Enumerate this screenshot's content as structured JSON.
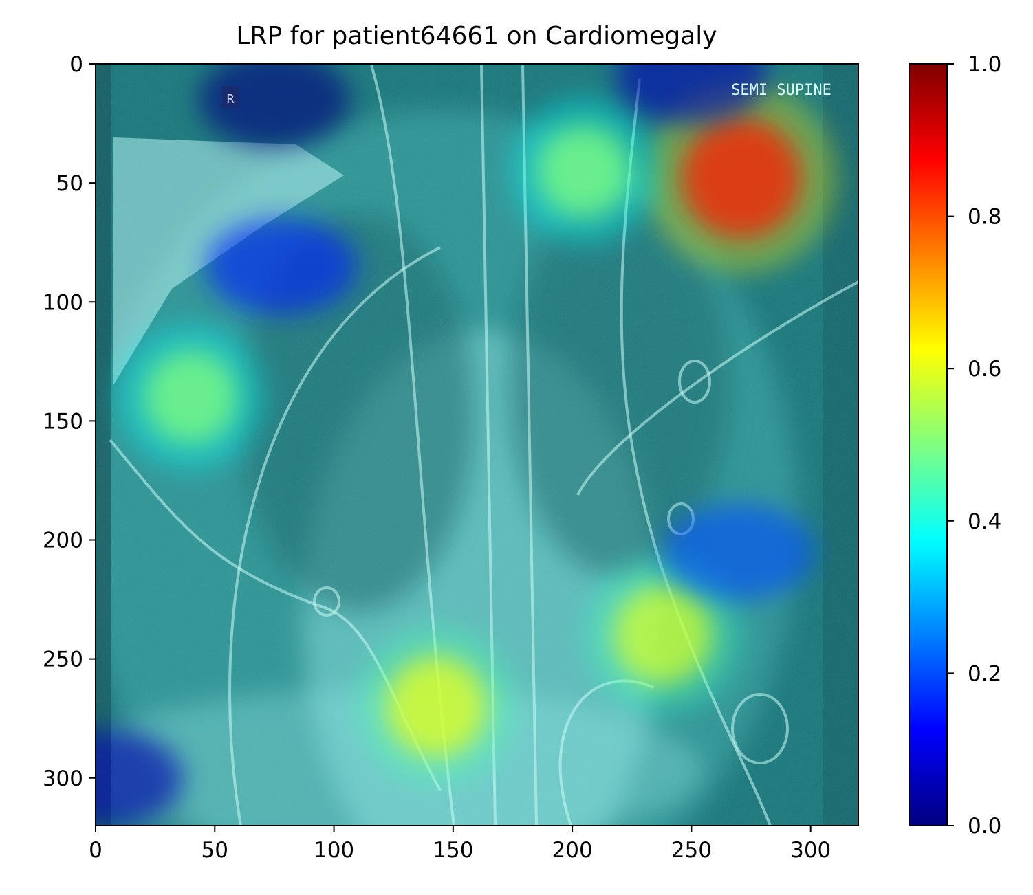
{
  "chart_data": {
    "type": "heatmap",
    "title": "LRP for patient64661 on Cardiomegaly",
    "xlabel": "",
    "ylabel": "",
    "xlim": [
      0,
      320
    ],
    "ylim": [
      320,
      0
    ],
    "x_ticks": [
      0,
      50,
      100,
      150,
      200,
      250,
      300
    ],
    "y_ticks": [
      0,
      50,
      100,
      150,
      200,
      250,
      300
    ],
    "x_tick_labels": [
      "0",
      "50",
      "100",
      "150",
      "200",
      "250",
      "300"
    ],
    "y_tick_labels": [
      "0",
      "50",
      "100",
      "150",
      "200",
      "250",
      "300"
    ],
    "colormap": "jet",
    "colorbar": {
      "range": [
        0.0,
        1.0
      ],
      "ticks": [
        0.0,
        0.2,
        0.4,
        0.6,
        0.8,
        1.0
      ],
      "tick_labels": [
        "0.0",
        "0.2",
        "0.4",
        "0.6",
        "0.8",
        "1.0"
      ],
      "colors": [
        "#000080",
        "#0000ff",
        "#0080ff",
        "#00ffff",
        "#80ff80",
        "#ffff00",
        "#ff8000",
        "#ff0000",
        "#800000"
      ]
    },
    "image_overlay_text": [
      "R",
      "SEMI SUPINE"
    ],
    "relevance_hotspots": [
      {
        "x": 271,
        "y": 48,
        "value": 0.85
      },
      {
        "x": 143,
        "y": 270,
        "value": 0.6
      },
      {
        "x": 238,
        "y": 240,
        "value": 0.58
      },
      {
        "x": 205,
        "y": 45,
        "value": 0.5
      },
      {
        "x": 40,
        "y": 140,
        "value": 0.5
      }
    ],
    "relevance_coldspots": [
      {
        "x": 75,
        "y": 15,
        "value": 0.0
      },
      {
        "x": 250,
        "y": 5,
        "value": 0.05
      },
      {
        "x": 78,
        "y": 85,
        "value": 0.15
      },
      {
        "x": 270,
        "y": 205,
        "value": 0.2
      },
      {
        "x": 5,
        "y": 300,
        "value": 0.05
      }
    ]
  }
}
